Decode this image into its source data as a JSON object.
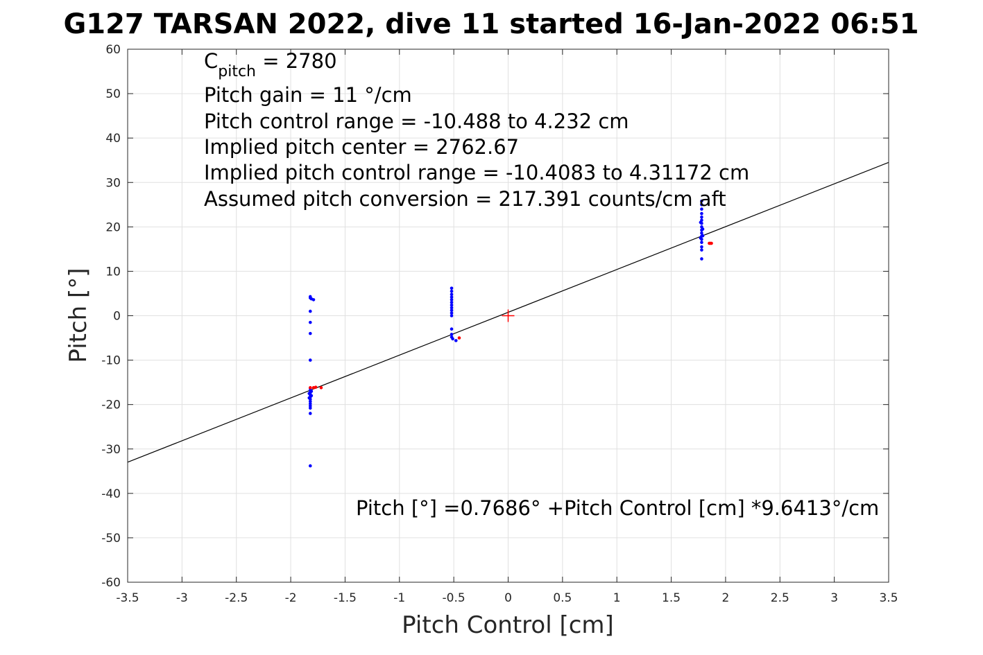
{
  "chart_data": {
    "type": "scatter",
    "title": "G127 TARSAN 2022, dive 11 started 16-Jan-2022 06:51",
    "xlabel": "Pitch Control [cm]",
    "ylabel": "Pitch [°]",
    "xlim": [
      -3.5,
      3.5
    ],
    "ylim": [
      -60,
      60
    ],
    "xticks": [
      -3.5,
      -3,
      -2.5,
      -2,
      -1.5,
      -1,
      -0.5,
      0,
      0.5,
      1,
      1.5,
      2,
      2.5,
      3,
      3.5
    ],
    "xtick_labels": [
      "-3.5",
      "-3",
      "-2.5",
      "-2",
      "-1.5",
      "-1",
      "-0.5",
      "0",
      "0.5",
      "1",
      "1.5",
      "2",
      "2.5",
      "3",
      "3.5"
    ],
    "yticks": [
      -60,
      -50,
      -40,
      -30,
      -20,
      -10,
      0,
      10,
      20,
      30,
      40,
      50,
      60
    ],
    "ytick_labels": [
      "-60",
      "-50",
      "-40",
      "-30",
      "-20",
      "-10",
      "0",
      "10",
      "20",
      "30",
      "40",
      "50",
      "60"
    ],
    "grid": true,
    "annotations": {
      "cpitch_base": "C",
      "cpitch_sub": "pitch",
      "cpitch_rest": " = 2780",
      "pitch_gain": "Pitch gain = 11 °/cm",
      "control_range": "Pitch control range = -10.488 to 4.232 cm",
      "implied_center": "Implied pitch center = 2762.67",
      "implied_range": "Implied pitch control range = -10.4083 to 4.31172 cm",
      "conversion": "Assumed pitch conversion = 217.391 counts/cm aft",
      "fit_equation": "Pitch [°] =0.7686° +Pitch Control [cm] *9.6413°/cm"
    },
    "fit_line": {
      "intercept": 0.7686,
      "slope": 9.6413,
      "color": "#000000"
    },
    "center_marker": {
      "x": 0,
      "y": 0,
      "color": "#ff0000"
    },
    "series": [
      {
        "color": "#0000ff",
        "points": [
          [
            -1.82,
            4.3
          ],
          [
            -1.82,
            4.0
          ],
          [
            -1.81,
            3.8
          ],
          [
            -1.79,
            3.6
          ],
          [
            -1.82,
            1.0
          ],
          [
            -1.82,
            -1.5
          ],
          [
            -1.82,
            -4.0
          ],
          [
            -1.82,
            -10.0
          ],
          [
            -1.82,
            -16.3
          ],
          [
            -1.82,
            -16.8
          ],
          [
            -1.82,
            -17.3
          ],
          [
            -1.82,
            -17.8
          ],
          [
            -1.82,
            -18.3
          ],
          [
            -1.82,
            -18.8
          ],
          [
            -1.82,
            -19.3
          ],
          [
            -1.82,
            -19.8
          ],
          [
            -1.82,
            -20.3
          ],
          [
            -1.82,
            -20.8
          ],
          [
            -1.82,
            -22.0
          ],
          [
            -1.82,
            -33.8
          ],
          [
            -1.81,
            -17.0
          ],
          [
            -1.81,
            -18.0
          ],
          [
            -1.83,
            -17.5
          ],
          [
            -1.83,
            -18.5
          ],
          [
            -0.52,
            6.2
          ],
          [
            -0.52,
            5.5
          ],
          [
            -0.52,
            4.8
          ],
          [
            -0.52,
            4.2
          ],
          [
            -0.52,
            3.6
          ],
          [
            -0.52,
            3.0
          ],
          [
            -0.52,
            2.4
          ],
          [
            -0.52,
            1.8
          ],
          [
            -0.52,
            1.2
          ],
          [
            -0.52,
            0.6
          ],
          [
            -0.52,
            0.0
          ],
          [
            -0.52,
            -3.0
          ],
          [
            -0.52,
            -4.2
          ],
          [
            -0.52,
            -4.8
          ],
          [
            -0.51,
            -5.2
          ],
          [
            -0.48,
            -5.6
          ],
          [
            1.78,
            25.8
          ],
          [
            1.78,
            25.0
          ],
          [
            1.78,
            24.0
          ],
          [
            1.78,
            23.0
          ],
          [
            1.78,
            22.2
          ],
          [
            1.78,
            21.5
          ],
          [
            1.78,
            20.8
          ],
          [
            1.78,
            20.0
          ],
          [
            1.78,
            19.3
          ],
          [
            1.78,
            18.6
          ],
          [
            1.78,
            17.9
          ],
          [
            1.78,
            17.2
          ],
          [
            1.78,
            16.5
          ],
          [
            1.78,
            15.5
          ],
          [
            1.78,
            14.8
          ],
          [
            1.78,
            12.8
          ],
          [
            1.79,
            18.0
          ],
          [
            1.79,
            19.5
          ],
          [
            1.77,
            21.0
          ],
          [
            1.77,
            17.5
          ]
        ]
      },
      {
        "color": "#ff0000",
        "points": [
          [
            -1.82,
            -16.2
          ],
          [
            -1.79,
            -16.2
          ],
          [
            -1.77,
            -16.1
          ],
          [
            -1.72,
            -16.2
          ],
          [
            -0.45,
            -5.0
          ],
          [
            1.85,
            16.3
          ],
          [
            1.86,
            16.3
          ],
          [
            1.87,
            16.3
          ]
        ]
      }
    ]
  }
}
